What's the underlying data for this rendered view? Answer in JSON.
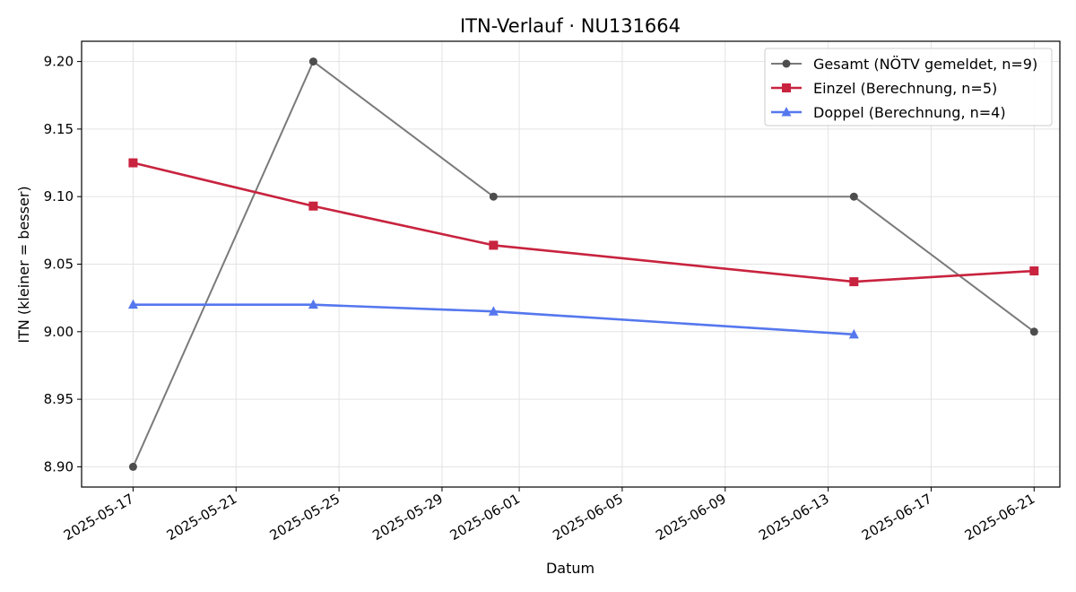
{
  "chart_data": {
    "type": "line",
    "title": "ITN-Verlauf · NU131664",
    "xlabel": "Datum",
    "ylabel": "ITN  (kleiner = besser)",
    "xlim": [
      "2025-05-15",
      "2025-06-22"
    ],
    "ylim": [
      8.885,
      9.215
    ],
    "x_ticks": [
      "2025-05-17",
      "2025-05-21",
      "2025-05-25",
      "2025-05-29",
      "2025-06-01",
      "2025-06-05",
      "2025-06-09",
      "2025-06-13",
      "2025-06-17",
      "2025-06-21"
    ],
    "y_ticks": [
      "8.90",
      "8.95",
      "9.00",
      "9.05",
      "9.10",
      "9.15",
      "9.20"
    ],
    "grid": true,
    "legend_position": "top-right",
    "series": [
      {
        "name": "Gesamt (NÖTV gemeldet, n=9)",
        "color": "#7a7a7a",
        "marker_color": "#4d4d4d",
        "marker": "circle",
        "points": [
          {
            "x": "2025-05-17",
            "y": 8.9
          },
          {
            "x": "2025-05-24",
            "y": 9.2
          },
          {
            "x": "2025-05-31",
            "y": 9.1
          },
          {
            "x": "2025-06-14",
            "y": 9.1
          },
          {
            "x": "2025-06-21",
            "y": 9.0
          }
        ]
      },
      {
        "name": "Einzel (Berechnung, n=5)",
        "color": "#c8233f",
        "marker_color": "#c8233f",
        "marker": "square",
        "points": [
          {
            "x": "2025-05-17",
            "y": 9.125
          },
          {
            "x": "2025-05-24",
            "y": 9.093
          },
          {
            "x": "2025-05-31",
            "y": 9.064
          },
          {
            "x": "2025-06-14",
            "y": 9.037
          },
          {
            "x": "2025-06-21",
            "y": 9.045
          }
        ]
      },
      {
        "name": "Doppel (Berechnung, n=4)",
        "color": "#5577ee",
        "marker_color": "#5577ee",
        "marker": "triangle",
        "points": [
          {
            "x": "2025-05-17",
            "y": 9.02
          },
          {
            "x": "2025-05-24",
            "y": 9.02
          },
          {
            "x": "2025-05-31",
            "y": 9.015
          },
          {
            "x": "2025-06-14",
            "y": 8.998
          }
        ]
      }
    ]
  }
}
